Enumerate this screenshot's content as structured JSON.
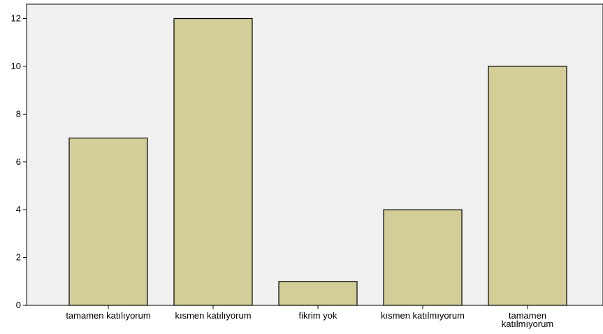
{
  "chart_data": {
    "type": "bar",
    "title": "",
    "xlabel": "",
    "ylabel": "",
    "categories": [
      [
        "tamamen katılıyorum"
      ],
      [
        "kısmen katılıyorum"
      ],
      [
        "fikrim yok"
      ],
      [
        "kısmen katılmıyorum"
      ],
      [
        "tamamen",
        "katılmıyorum"
      ]
    ],
    "values": [
      7,
      12,
      1,
      4,
      10
    ],
    "ylim": [
      0,
      12.6
    ],
    "yticks": [
      "0",
      "2",
      "4",
      "6",
      "8",
      "10",
      "12"
    ],
    "grid": false,
    "legend": "none",
    "colors": {
      "bar_fill": "#d3cd98",
      "bar_stroke": "#000000",
      "plot_background": "#f0f0f0",
      "axis": "#000000"
    }
  }
}
